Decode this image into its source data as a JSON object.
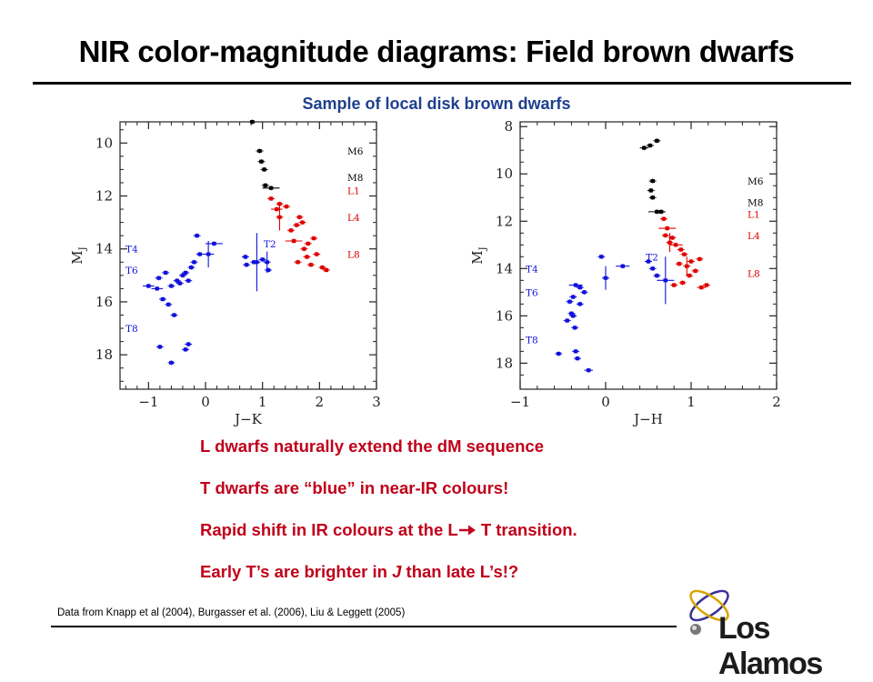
{
  "title": "NIR color-magnitude diagrams: Field brown dwarfs",
  "subtitle": "Sample of local disk brown dwarfs",
  "bullets": [
    "L dwarfs naturally extend the dM sequence",
    "T dwarfs are “blue” in near-IR colours!",
    "Rapid shift in IR colours at the L",
    " T transition.",
    "Early T’s are brighter in ",
    "J",
    " than late L’s!?"
  ],
  "footer": "Data from  Knapp et al (2004),  Burgasser et al. (2006),   Liu & Leggett (2005)",
  "logo_text": "Los Alamos",
  "chart_data": [
    {
      "type": "scatter",
      "xlabel": "J−K",
      "ylabel": "M",
      "ylabel_sub": "J",
      "xlim": [
        -1.5,
        3
      ],
      "ylim": [
        9.2,
        19.3
      ],
      "y_inverted": true,
      "xticks": [
        -1,
        0,
        1,
        2,
        3
      ],
      "xtick_labels": [
        "−1",
        "0",
        "1",
        "2",
        "3"
      ],
      "yticks": [
        10,
        12,
        14,
        16,
        18
      ],
      "yminor": [
        9.5,
        10.5,
        11,
        11.5,
        12.5,
        13,
        13.5,
        14.5,
        15,
        15.5,
        16.5,
        17,
        17.5,
        18.5,
        19
      ],
      "xminor": [
        -1.4,
        -1.2,
        -0.8,
        -0.6,
        -0.4,
        -0.2,
        0.2,
        0.4,
        0.6,
        0.8,
        1.2,
        1.4,
        1.6,
        1.8,
        2.2,
        2.4,
        2.6,
        2.8
      ],
      "spectral_labels": [
        {
          "text": "M6",
          "y": 10.3,
          "color": "#000000"
        },
        {
          "text": "M8",
          "y": 11.3,
          "color": "#000000"
        },
        {
          "text": "L1",
          "y": 11.8,
          "color": "#e00000"
        },
        {
          "text": "L4",
          "y": 12.8,
          "color": "#e00000"
        },
        {
          "text": "L8",
          "y": 14.2,
          "color": "#e00000"
        },
        {
          "text": "T2",
          "y": 13.8,
          "color": "#1010dd",
          "xpos": "inner"
        },
        {
          "text": "T4",
          "y": 14.0,
          "color": "#1010dd"
        },
        {
          "text": "T6",
          "y": 14.8,
          "color": "#1010dd"
        },
        {
          "text": "T8",
          "y": 17.0,
          "color": "#1010dd"
        }
      ],
      "series": [
        {
          "color": "#000000",
          "points": [
            {
              "x": 0.82,
              "y": 9.2
            },
            {
              "x": 0.95,
              "y": 10.3
            },
            {
              "x": 0.98,
              "y": 10.7
            },
            {
              "x": 1.03,
              "y": 11.0
            },
            {
              "x": 1.05,
              "y": 11.6
            },
            {
              "x": 1.15,
              "y": 11.7,
              "ex": 0.15
            }
          ]
        },
        {
          "color": "#e00000",
          "points": [
            {
              "x": 1.15,
              "y": 12.1
            },
            {
              "x": 1.25,
              "y": 12.5,
              "ex": 0.1
            },
            {
              "x": 1.3,
              "y": 12.3
            },
            {
              "x": 1.3,
              "y": 12.8,
              "ey": 0.5
            },
            {
              "x": 1.42,
              "y": 12.4
            },
            {
              "x": 1.5,
              "y": 13.3
            },
            {
              "x": 1.55,
              "y": 13.7,
              "ex": 0.15
            },
            {
              "x": 1.6,
              "y": 13.1
            },
            {
              "x": 1.62,
              "y": 14.5
            },
            {
              "x": 1.65,
              "y": 12.8
            },
            {
              "x": 1.7,
              "y": 13.0
            },
            {
              "x": 1.73,
              "y": 14.0
            },
            {
              "x": 1.78,
              "y": 14.3
            },
            {
              "x": 1.8,
              "y": 13.8
            },
            {
              "x": 1.85,
              "y": 14.6
            },
            {
              "x": 1.9,
              "y": 13.6
            },
            {
              "x": 1.95,
              "y": 14.2
            },
            {
              "x": 2.05,
              "y": 14.7
            },
            {
              "x": 2.12,
              "y": 14.8
            }
          ]
        },
        {
          "color": "#1010dd",
          "points": [
            {
              "x": -1.0,
              "y": 15.4,
              "ex": 0.1
            },
            {
              "x": -0.85,
              "y": 15.5,
              "ex": 0.1
            },
            {
              "x": -0.82,
              "y": 15.1
            },
            {
              "x": -0.75,
              "y": 15.9
            },
            {
              "x": -0.7,
              "y": 14.9
            },
            {
              "x": -0.65,
              "y": 16.1
            },
            {
              "x": -0.6,
              "y": 15.4
            },
            {
              "x": -0.55,
              "y": 16.5
            },
            {
              "x": -0.5,
              "y": 15.2
            },
            {
              "x": -0.45,
              "y": 15.3
            },
            {
              "x": -0.4,
              "y": 15.0
            },
            {
              "x": -0.35,
              "y": 14.9
            },
            {
              "x": -0.3,
              "y": 15.2
            },
            {
              "x": -0.25,
              "y": 14.7
            },
            {
              "x": -0.2,
              "y": 14.5
            },
            {
              "x": -0.15,
              "y": 13.5
            },
            {
              "x": -0.1,
              "y": 14.2
            },
            {
              "x": -0.8,
              "y": 17.7,
              "ex": 0.06
            },
            {
              "x": -0.6,
              "y": 18.3,
              "ex": 0.06
            },
            {
              "x": -0.35,
              "y": 17.8
            },
            {
              "x": -0.3,
              "y": 17.6
            },
            {
              "x": 0.05,
              "y": 14.2,
              "ex": 0.1,
              "ey": 0.5
            },
            {
              "x": 0.15,
              "y": 13.8,
              "ex": 0.15
            },
            {
              "x": 0.7,
              "y": 14.3
            },
            {
              "x": 0.72,
              "y": 14.6
            },
            {
              "x": 0.85,
              "y": 14.5
            },
            {
              "x": 0.9,
              "y": 14.5,
              "ey": 1.1
            },
            {
              "x": 1.0,
              "y": 14.4
            },
            {
              "x": 1.08,
              "y": 14.5,
              "ey": 0.4
            },
            {
              "x": 1.1,
              "y": 14.8
            }
          ]
        }
      ]
    },
    {
      "type": "scatter",
      "xlabel": "J−H",
      "ylabel": "M",
      "ylabel_sub": "J",
      "xlim": [
        -1,
        2
      ],
      "ylim": [
        7.8,
        19.1
      ],
      "y_inverted": true,
      "xticks": [
        -1,
        0,
        1,
        2
      ],
      "xtick_labels": [
        "−1",
        "0",
        "1",
        "2"
      ],
      "yticks": [
        8,
        10,
        12,
        14,
        16,
        18
      ],
      "yminor": [
        8.5,
        9,
        9.5,
        10.5,
        11,
        11.5,
        12.5,
        13,
        13.5,
        14.5,
        15,
        15.5,
        16.5,
        17,
        17.5,
        18.5
      ],
      "xminor": [
        -0.8,
        -0.6,
        -0.4,
        -0.2,
        0.2,
        0.4,
        0.6,
        0.8,
        1.2,
        1.4,
        1.6,
        1.8
      ],
      "spectral_labels": [
        {
          "text": "M6",
          "y": 10.3,
          "color": "#000000"
        },
        {
          "text": "M8",
          "y": 11.2,
          "color": "#000000"
        },
        {
          "text": "L1",
          "y": 11.7,
          "color": "#e00000"
        },
        {
          "text": "L4",
          "y": 12.6,
          "color": "#e00000"
        },
        {
          "text": "L8",
          "y": 14.2,
          "color": "#e00000"
        },
        {
          "text": "T2",
          "y": 13.5,
          "color": "#1010dd",
          "xpos": "inner"
        },
        {
          "text": "T4",
          "y": 14.0,
          "color": "#1010dd"
        },
        {
          "text": "T6",
          "y": 15.0,
          "color": "#1010dd"
        },
        {
          "text": "T8",
          "y": 17.0,
          "color": "#1010dd"
        }
      ],
      "series": [
        {
          "color": "#000000",
          "points": [
            {
              "x": 0.45,
              "y": 8.9,
              "ex": 0.05
            },
            {
              "x": 0.52,
              "y": 8.8
            },
            {
              "x": 0.6,
              "y": 8.6
            },
            {
              "x": 0.55,
              "y": 10.3
            },
            {
              "x": 0.53,
              "y": 10.7
            },
            {
              "x": 0.55,
              "y": 11.0
            },
            {
              "x": 0.6,
              "y": 11.6,
              "ex": 0.1
            },
            {
              "x": 0.65,
              "y": 11.6
            }
          ]
        },
        {
          "color": "#e00000",
          "points": [
            {
              "x": 0.68,
              "y": 11.9
            },
            {
              "x": 0.72,
              "y": 12.3,
              "ex": 0.1
            },
            {
              "x": 0.7,
              "y": 12.6
            },
            {
              "x": 0.75,
              "y": 12.9,
              "ey": 0.4
            },
            {
              "x": 0.78,
              "y": 12.7
            },
            {
              "x": 0.82,
              "y": 13.0,
              "ex": 0.08
            },
            {
              "x": 0.88,
              "y": 13.2
            },
            {
              "x": 0.86,
              "y": 13.8
            },
            {
              "x": 0.92,
              "y": 13.4
            },
            {
              "x": 0.95,
              "y": 13.9,
              "ey": 0.4
            },
            {
              "x": 0.98,
              "y": 14.3
            },
            {
              "x": 1.0,
              "y": 13.7
            },
            {
              "x": 1.05,
              "y": 14.1
            },
            {
              "x": 1.1,
              "y": 13.6
            },
            {
              "x": 0.8,
              "y": 14.7
            },
            {
              "x": 0.9,
              "y": 14.6
            },
            {
              "x": 1.12,
              "y": 14.8,
              "ex": 0.05
            },
            {
              "x": 1.18,
              "y": 14.7
            }
          ]
        },
        {
          "color": "#1010dd",
          "points": [
            {
              "x": -0.55,
              "y": 17.6
            },
            {
              "x": -0.45,
              "y": 16.2
            },
            {
              "x": -0.4,
              "y": 15.9
            },
            {
              "x": -0.42,
              "y": 15.4
            },
            {
              "x": -0.38,
              "y": 15.2
            },
            {
              "x": -0.35,
              "y": 14.7,
              "ex": 0.08
            },
            {
              "x": -0.3,
              "y": 14.8
            },
            {
              "x": -0.25,
              "y": 15.0
            },
            {
              "x": -0.3,
              "y": 15.5
            },
            {
              "x": -0.36,
              "y": 16.5
            },
            {
              "x": -0.38,
              "y": 16.0
            },
            {
              "x": -0.35,
              "y": 17.5
            },
            {
              "x": -0.33,
              "y": 17.8
            },
            {
              "x": -0.2,
              "y": 18.3,
              "ex": 0.05
            },
            {
              "x": -0.05,
              "y": 13.5
            },
            {
              "x": 0.0,
              "y": 14.4,
              "ey": 0.5
            },
            {
              "x": 0.2,
              "y": 13.9,
              "ex": 0.08
            },
            {
              "x": 0.5,
              "y": 13.7
            },
            {
              "x": 0.55,
              "y": 14.0
            },
            {
              "x": 0.6,
              "y": 14.3
            },
            {
              "x": 0.7,
              "y": 14.5,
              "ex": 0.1,
              "ey": 1.0
            }
          ]
        }
      ]
    }
  ]
}
